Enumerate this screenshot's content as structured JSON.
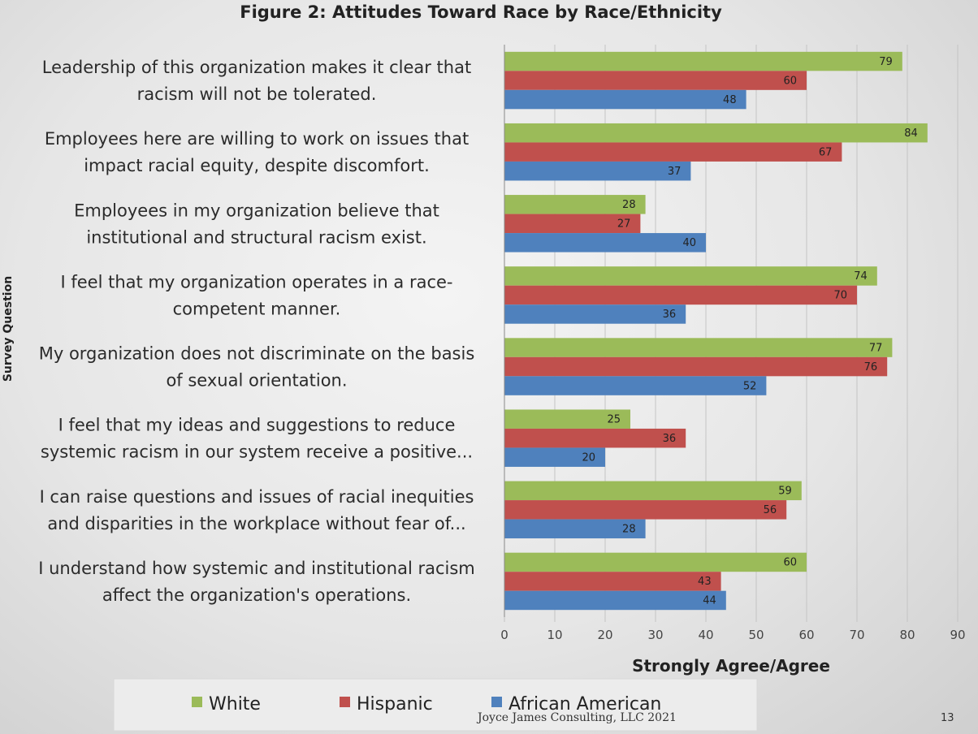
{
  "chart_data": {
    "type": "bar",
    "orientation": "horizontal",
    "title": "Figure 2: Attitudes Toward Race by Race/Ethnicity",
    "xlabel": "Strongly Agree/Agree",
    "ylabel": "Survey Question",
    "xlim": [
      0,
      90
    ],
    "xticks": [
      0,
      10,
      20,
      30,
      40,
      50,
      60,
      70,
      80,
      90
    ],
    "grid": "vertical",
    "legend_position": "bottom",
    "categories": [
      [
        "Leadership of this organization makes it clear that",
        "racism will not be tolerated."
      ],
      [
        "Employees here are willing to work on issues that",
        "impact racial equity, despite discomfort."
      ],
      [
        "Employees in my organization believe that",
        "institutional and structural racism exist."
      ],
      [
        "I feel that my organization operates in a race-",
        "competent manner."
      ],
      [
        "My organization does not discriminate on the basis",
        "of sexual orientation."
      ],
      [
        "I feel that my ideas and suggestions to reduce",
        "systemic racism in our system receive a positive..."
      ],
      [
        "I can raise questions and issues of racial inequities",
        "and disparities in the workplace without fear of..."
      ],
      [
        "I understand how systemic and institutional racism",
        "affect the organization's operations."
      ]
    ],
    "series": [
      {
        "name": "White",
        "color": "#9bbb59",
        "values": [
          79,
          84,
          28,
          74,
          77,
          25,
          59,
          60
        ]
      },
      {
        "name": "Hispanic",
        "color": "#c0504d",
        "values": [
          60,
          67,
          27,
          70,
          76,
          36,
          56,
          43
        ]
      },
      {
        "name": "African American",
        "color": "#4f81bd",
        "values": [
          48,
          37,
          40,
          36,
          52,
          20,
          28,
          44
        ]
      }
    ]
  },
  "footer": {
    "credit": "Joyce James Consulting, LLC 2021",
    "page_number": "13"
  }
}
